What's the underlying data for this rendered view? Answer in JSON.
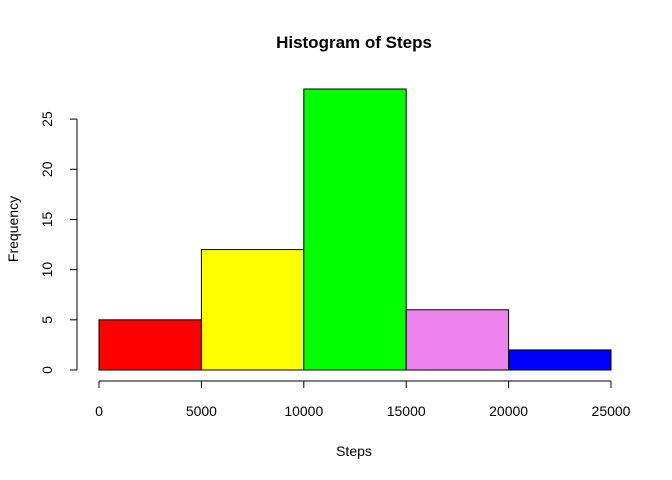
{
  "chart_data": {
    "type": "bar",
    "title": "Histogram of Steps",
    "xlabel": "Steps",
    "ylabel": "Frequency",
    "bins": [
      {
        "from": 0,
        "to": 5000,
        "count": 5,
        "color": "#ff0000"
      },
      {
        "from": 5000,
        "to": 10000,
        "count": 12,
        "color": "#ffff00"
      },
      {
        "from": 10000,
        "to": 15000,
        "count": 28,
        "color": "#00ff00"
      },
      {
        "from": 15000,
        "to": 20000,
        "count": 6,
        "color": "#ee82ee"
      },
      {
        "from": 20000,
        "to": 25000,
        "count": 2,
        "color": "#0000ff"
      }
    ],
    "xticks": [
      "0",
      "5000",
      "10000",
      "15000",
      "20000",
      "25000"
    ],
    "yticks": [
      "0",
      "5",
      "10",
      "15",
      "20",
      "25"
    ],
    "xlim": [
      0,
      25000
    ],
    "ylim": [
      0,
      28
    ],
    "grid": false
  }
}
